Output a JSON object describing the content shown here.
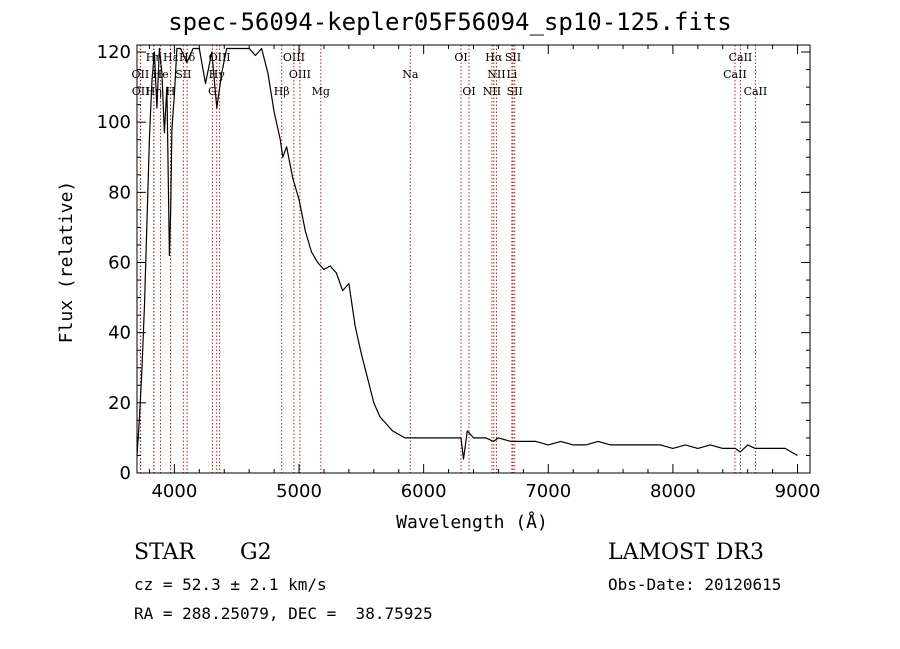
{
  "chart_data": {
    "type": "line",
    "title": "spec-56094-kepler05F56094_sp10-125.fits",
    "xlabel": "Wavelength (Å)",
    "ylabel": "Flux (relative)",
    "xlim": [
      3700,
      9100
    ],
    "ylim": [
      0,
      122
    ],
    "x_ticks": [
      4000,
      5000,
      6000,
      7000,
      8000,
      9000
    ],
    "y_ticks": [
      0,
      20,
      40,
      60,
      80,
      100,
      120
    ],
    "series": [
      {
        "name": "spectrum",
        "x": [
          3700,
          3720,
          3740,
          3760,
          3780,
          3800,
          3820,
          3840,
          3860,
          3880,
          3900,
          3920,
          3940,
          3960,
          3970,
          3980,
          4000,
          4020,
          4050,
          4100,
          4150,
          4200,
          4250,
          4300,
          4340,
          4380,
          4420,
          4470,
          4500,
          4550,
          4600,
          4650,
          4700,
          4750,
          4800,
          4850,
          4870,
          4900,
          4950,
          5000,
          5050,
          5100,
          5150,
          5200,
          5250,
          5300,
          5350,
          5400,
          5450,
          5500,
          5550,
          5600,
          5650,
          5700,
          5750,
          5800,
          5850,
          5900,
          5950,
          6000,
          6100,
          6200,
          6300,
          6320,
          6350,
          6400,
          6500,
          6560,
          6600,
          6700,
          6800,
          6900,
          7000,
          7100,
          7200,
          7300,
          7400,
          7500,
          7600,
          7700,
          7800,
          7900,
          8000,
          8100,
          8200,
          8300,
          8400,
          8500,
          8540,
          8600,
          8660,
          8700,
          8800,
          8900,
          8950,
          9000
        ],
        "y": [
          5,
          16,
          30,
          48,
          72,
          96,
          112,
          120,
          104,
          121,
          114,
          97,
          110,
          62,
          75,
          98,
          108,
          121,
          121,
          117,
          121,
          121,
          111,
          120,
          104,
          114,
          121,
          121,
          121,
          121,
          121,
          119,
          121,
          114,
          103,
          95,
          90,
          93,
          84,
          78,
          69,
          63,
          60,
          58,
          59,
          57,
          52,
          54,
          42,
          34,
          27,
          20,
          16,
          14,
          12,
          11,
          10,
          10,
          10,
          10,
          10,
          10,
          10,
          4,
          12,
          10,
          10,
          9,
          10,
          9,
          9,
          9,
          8,
          9,
          8,
          8,
          9,
          8,
          8,
          8,
          8,
          8,
          7,
          8,
          7,
          8,
          7,
          7,
          6,
          8,
          7,
          7,
          7,
          7,
          6,
          5
        ]
      }
    ],
    "line_markers": [
      {
        "name": "Hε",
        "wl": 3970,
        "row": 0
      },
      {
        "name": "Hη",
        "wl": 3835,
        "row": 0
      },
      {
        "name": "Hδ",
        "wl": 4102,
        "row": 0
      },
      {
        "name": "OIII",
        "wl": 4363,
        "row": 0
      },
      {
        "name": "OIII",
        "wl": 4959,
        "row": 0
      },
      {
        "name": "OI",
        "wl": 6300,
        "row": 0
      },
      {
        "name": "Hα",
        "wl": 6563,
        "row": 0
      },
      {
        "name": "SII",
        "wl": 6717,
        "row": 0
      },
      {
        "name": "CaII",
        "wl": 8542,
        "row": 0
      },
      {
        "name": "OII",
        "wl": 3727,
        "row": 1
      },
      {
        "name": "He",
        "wl": 3889,
        "row": 1
      },
      {
        "name": "SII",
        "wl": 4072,
        "row": 1
      },
      {
        "name": "Hγ",
        "wl": 4340,
        "row": 1
      },
      {
        "name": "OIII",
        "wl": 5007,
        "row": 1
      },
      {
        "name": "Na",
        "wl": 5893,
        "row": 1
      },
      {
        "name": "NII",
        "wl": 6584,
        "row": 1
      },
      {
        "name": "Li",
        "wl": 6708,
        "row": 1
      },
      {
        "name": "CaII",
        "wl": 8498,
        "row": 1
      },
      {
        "name": "OII",
        "wl": 3729,
        "row": 2
      },
      {
        "name": "Hη",
        "wl": 3835,
        "row": 2
      },
      {
        "name": "H",
        "wl": 3969,
        "row": 2
      },
      {
        "name": "G",
        "wl": 4305,
        "row": 2
      },
      {
        "name": "Hβ",
        "wl": 4861,
        "row": 2
      },
      {
        "name": "Mg",
        "wl": 5175,
        "row": 2
      },
      {
        "name": "OI",
        "wl": 6364,
        "row": 2
      },
      {
        "name": "NII",
        "wl": 6548,
        "row": 2
      },
      {
        "name": "SII",
        "wl": 6731,
        "row": 2
      },
      {
        "name": "CaII",
        "wl": 8662,
        "row": 2
      }
    ]
  },
  "info": {
    "object_class": "STAR",
    "subclass": "G2",
    "survey": "LAMOST DR3",
    "cz": "cz = 52.3 ± 2.1 km/s",
    "obs_date": "Obs-Date: 20120615",
    "coords": "RA = 288.25079, DEC =  38.75925"
  }
}
